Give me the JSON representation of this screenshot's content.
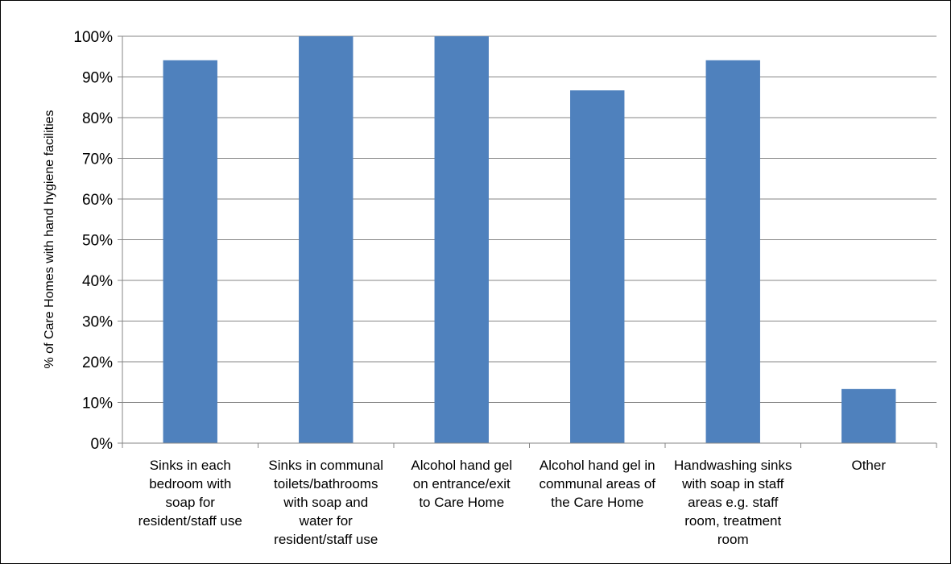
{
  "chart_data": {
    "type": "bar",
    "title": "",
    "xlabel": "",
    "ylabel": "% of Care Homes with hand hygiene facilities",
    "ylim": [
      0,
      100
    ],
    "y_ticks": [
      "0%",
      "10%",
      "20%",
      "30%",
      "40%",
      "50%",
      "60%",
      "70%",
      "80%",
      "90%",
      "100%"
    ],
    "grid": true,
    "legend": "none",
    "bar_color": "#4F81BD",
    "categories": [
      "Sinks in each bedroom with soap for resident/staff use",
      "Sinks in communal toilets/bathrooms with soap and water for resident/staff use",
      "Alcohol hand gel on entrance/exit to Care Home",
      "Alcohol hand gel in communal areas of the Care Home",
      "Handwashing sinks with soap in staff areas e.g. staff room, treatment room",
      "Other"
    ],
    "category_label_lines": [
      [
        "Sinks in each",
        "bedroom with",
        "soap for",
        "resident/staff use"
      ],
      [
        "Sinks in communal",
        "toilets/bathrooms",
        "with soap and",
        "water for",
        "resident/staff use"
      ],
      [
        "Alcohol hand gel",
        "on entrance/exit",
        "to Care Home"
      ],
      [
        "Alcohol hand gel in",
        "communal areas of",
        "the Care Home"
      ],
      [
        "Handwashing sinks",
        "with soap in staff",
        "areas e.g. staff",
        "room, treatment",
        "room"
      ],
      [
        "Other"
      ]
    ],
    "values": [
      94.1,
      100,
      100,
      86.7,
      94.1,
      13.3
    ]
  }
}
